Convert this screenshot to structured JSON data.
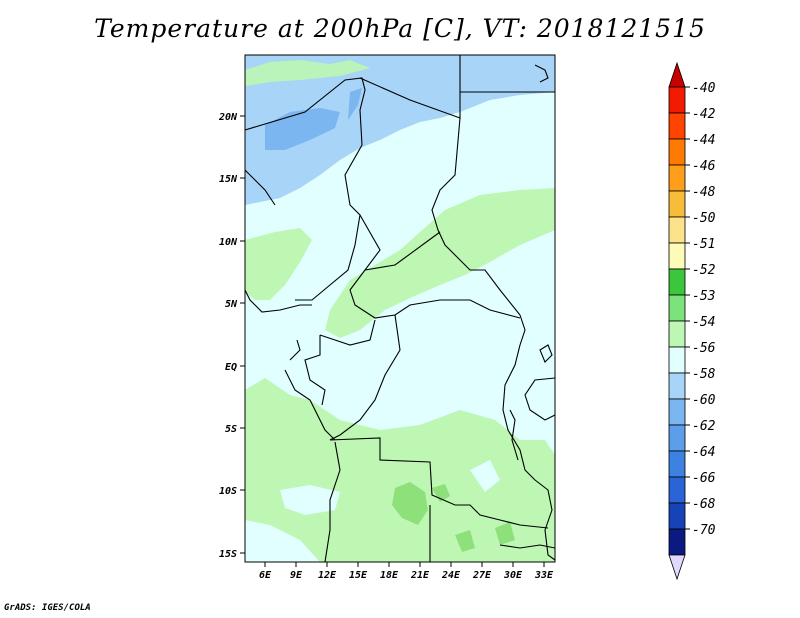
{
  "title": "Temperature at 200hPa [C], VT: 2018121515",
  "footer": "GrADS: IGES/COLA",
  "map": {
    "lat_labels": [
      "20N",
      "15N",
      "10N",
      "5N",
      "EQ",
      "5S",
      "10S",
      "15S"
    ],
    "lon_labels": [
      "6E",
      "9E",
      "12E",
      "15E",
      "18E",
      "21E",
      "24E",
      "27E",
      "30E",
      "33E"
    ],
    "colors": {
      "very_light": "#e0fffe",
      "light_blue": "#a8d4f7",
      "mid_blue": "#7cb6f0",
      "light_green": "#bdf7b3",
      "mid_green": "#8ee07a",
      "border": "#000000"
    }
  },
  "colorbar": {
    "labels": [
      "-40",
      "-42",
      "-44",
      "-46",
      "-48",
      "-50",
      "-51",
      "-52",
      "-53",
      "-54",
      "-56",
      "-58",
      "-60",
      "-62",
      "-64",
      "-66",
      "-68",
      "-70"
    ],
    "colors": [
      "#f21a00",
      "#ff4400",
      "#ff7a00",
      "#ff9e1a",
      "#f7bd3a",
      "#fce28a",
      "#fdfbb8",
      "#3bc63b",
      "#7ce27c",
      "#bdf7b3",
      "#e0fffe",
      "#a8d4f7",
      "#7cb6f0",
      "#5c9eea",
      "#3d82e3",
      "#2a64d6",
      "#1644b8",
      "#0a1a80"
    ],
    "top_arrow_color": "#c80000",
    "bottom_arrow_color": "#e0d8ff"
  }
}
